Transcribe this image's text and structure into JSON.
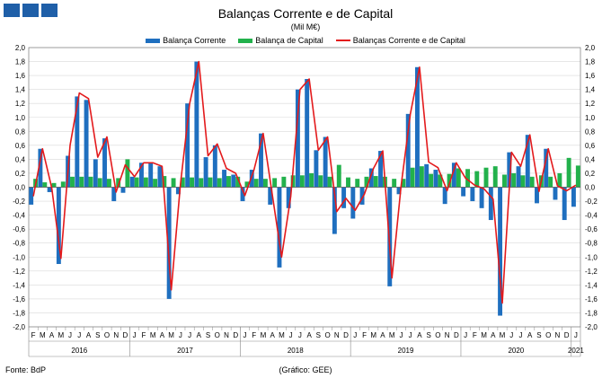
{
  "header": {
    "logo_icon": "bdp-logo-icon",
    "title": "Balanças Corrente e de Capital",
    "subtitle": "(Mil M€)"
  },
  "legend": {
    "current": "Balança Corrente",
    "capital": "Balança de Capital",
    "total": "Balanças Corrente e de Capital"
  },
  "footer": {
    "source": "Fonte: BdP",
    "credit": "(Gráfico: GEE)"
  },
  "colors": {
    "current": "#1f6fbf",
    "capital": "#22b14c",
    "total": "#e31a1c",
    "grid": "#d9d9d9"
  },
  "chart_data": {
    "type": "bar",
    "title": "Balanças Corrente e de Capital",
    "subtitle": "(Mil M€)",
    "xlabel": "",
    "ylabel": "",
    "ylim": [
      -2.0,
      2.0
    ],
    "ytick_step": 0.2,
    "y_axis_labels_both_sides": true,
    "grid": true,
    "legend_position": "top",
    "month_labels": [
      "F",
      "M",
      "A",
      "M",
      "J",
      "J",
      "A",
      "S",
      "O",
      "N",
      "D",
      "J",
      "F",
      "M",
      "A",
      "M",
      "J",
      "J",
      "A",
      "S",
      "O",
      "N",
      "D",
      "J",
      "F",
      "M",
      "A",
      "M",
      "J",
      "J",
      "A",
      "S",
      "O",
      "N",
      "D",
      "J",
      "F",
      "M",
      "A",
      "M",
      "J",
      "J",
      "A",
      "S",
      "O",
      "N",
      "D",
      "J",
      "F",
      "M",
      "A",
      "M",
      "J",
      "J",
      "A",
      "S",
      "O",
      "N",
      "D",
      "J"
    ],
    "year_groups": [
      {
        "label": "2016",
        "start": 0,
        "end": 10
      },
      {
        "label": "2017",
        "start": 11,
        "end": 22
      },
      {
        "label": "2018",
        "start": 23,
        "end": 34
      },
      {
        "label": "2019",
        "start": 35,
        "end": 46
      },
      {
        "label": "2020",
        "start": 47,
        "end": 58
      },
      {
        "label": "2021",
        "start": 59,
        "end": 59
      }
    ],
    "series": [
      {
        "name": "Balança Corrente",
        "kind": "bar",
        "values": [
          -0.25,
          0.55,
          -0.07,
          -1.1,
          0.45,
          1.3,
          1.25,
          0.4,
          0.7,
          -0.2,
          -0.08,
          0.15,
          0.35,
          0.35,
          0.3,
          -1.6,
          -0.1,
          1.2,
          1.8,
          0.43,
          0.6,
          0.25,
          0.18,
          -0.2,
          0.25,
          0.77,
          -0.25,
          -1.15,
          -0.3,
          1.4,
          1.55,
          0.53,
          0.72,
          -0.67,
          -0.3,
          -0.45,
          -0.25,
          0.27,
          0.52,
          -1.42,
          -0.1,
          1.05,
          1.72,
          0.33,
          0.25,
          -0.24,
          0.35,
          -0.13,
          -0.2,
          -0.3,
          -0.47,
          -1.84,
          0.5,
          0.3,
          0.75,
          -0.23,
          0.55,
          -0.18,
          -0.47,
          -0.28
        ]
      },
      {
        "name": "Balança de Capital",
        "kind": "bar",
        "values": [
          0.12,
          0.07,
          0.06,
          0.08,
          0.15,
          0.15,
          0.15,
          0.13,
          0.12,
          0.13,
          0.4,
          0.14,
          0.14,
          0.12,
          0.16,
          0.13,
          0.14,
          0.14,
          0.13,
          0.14,
          0.13,
          0.16,
          0.15,
          0.08,
          0.12,
          0.12,
          0.13,
          0.15,
          0.17,
          0.17,
          0.2,
          0.17,
          0.15,
          0.32,
          0.14,
          0.12,
          0.15,
          0.16,
          0.15,
          0.12,
          0.12,
          0.28,
          0.3,
          0.19,
          0.18,
          0.19,
          0.27,
          0.26,
          0.23,
          0.28,
          0.3,
          0.18,
          0.2,
          0.17,
          0.15,
          0.17,
          0.15,
          0.2,
          0.42,
          0.31
        ]
      },
      {
        "name": "Balanças Corrente e de Capital",
        "kind": "line",
        "values": [
          -0.13,
          0.55,
          -0.01,
          -1.02,
          0.6,
          1.35,
          1.27,
          0.43,
          0.72,
          -0.07,
          0.32,
          0.15,
          0.35,
          0.35,
          0.3,
          -1.47,
          0.04,
          1.2,
          1.8,
          0.45,
          0.62,
          0.27,
          0.2,
          -0.12,
          0.25,
          0.77,
          -0.12,
          -1.0,
          -0.13,
          1.4,
          1.55,
          0.53,
          0.72,
          -0.35,
          -0.16,
          -0.33,
          -0.1,
          0.27,
          0.52,
          -1.3,
          0.02,
          1.05,
          1.72,
          0.36,
          0.28,
          -0.05,
          0.35,
          0.13,
          0.03,
          -0.02,
          -0.17,
          -1.66,
          0.5,
          0.3,
          0.75,
          -0.06,
          0.55,
          0.02,
          -0.05,
          0.03
        ]
      }
    ]
  }
}
